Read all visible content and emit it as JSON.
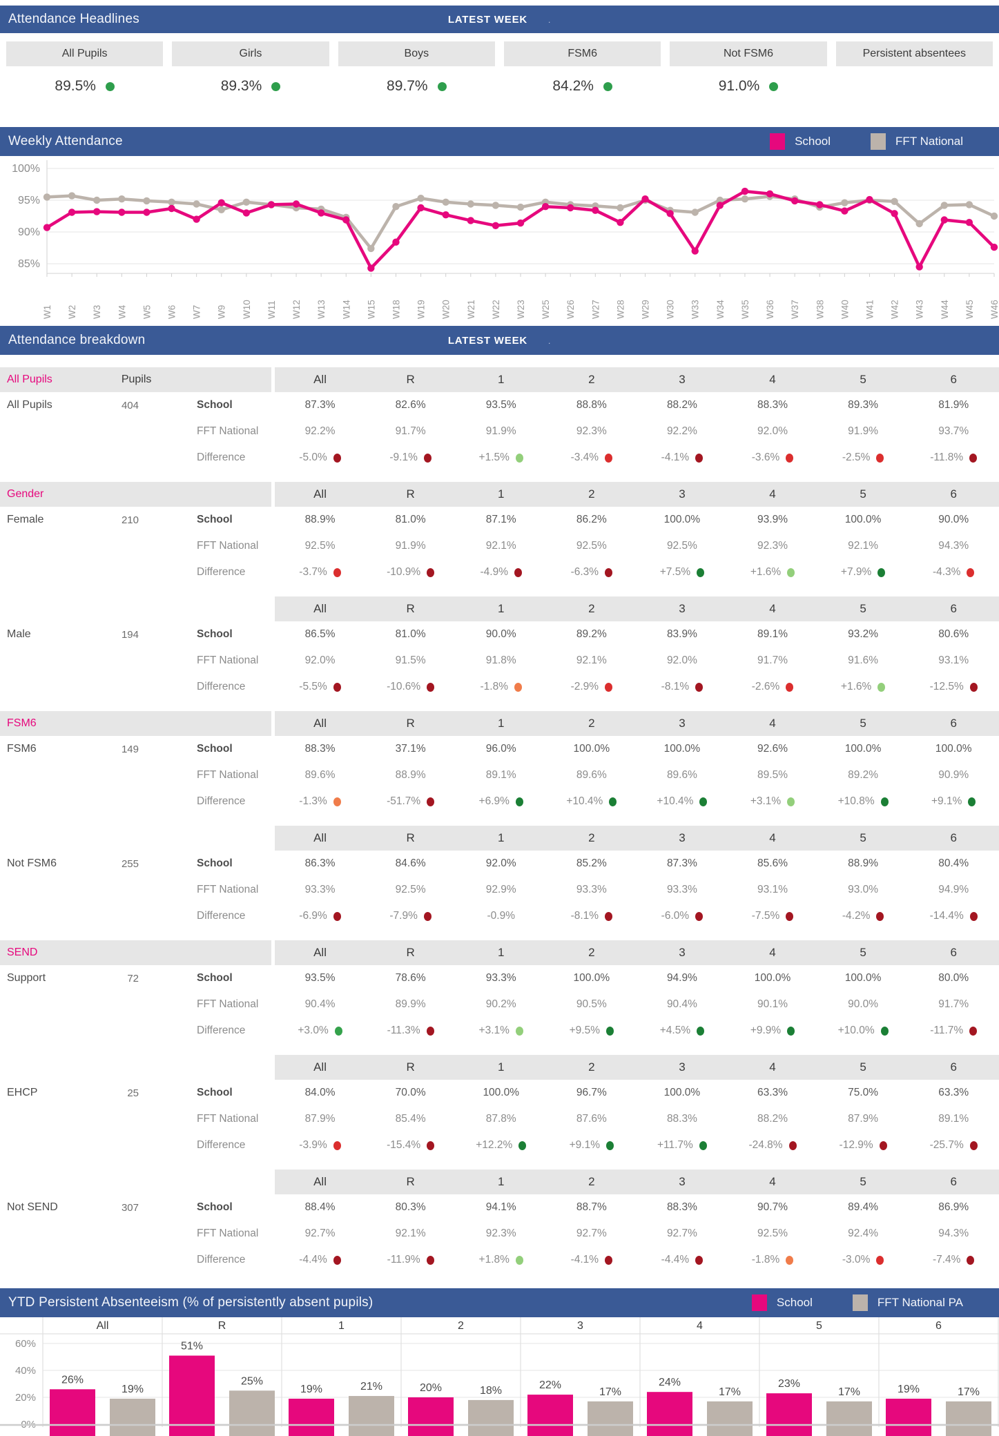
{
  "colors": {
    "header_blue": "#3A5A96",
    "school_pink": "#E6087D",
    "national_gray": "#BCB3AB",
    "band_gray": "#E6E6E6",
    "headline_dot_green": "#2E9E4C",
    "grid_line": "#E9E9E9",
    "dots": {
      "darkred": "#A31621",
      "red": "#DB2E2E",
      "orange": "#F07C4A",
      "lightgreen": "#93CF7B",
      "green": "#34A24B",
      "darkgreen": "#1B7F35"
    }
  },
  "headlines": {
    "title": "Attendance Headlines",
    "badge": "LATEST WEEK",
    "badge_suffix": ".",
    "cards": [
      {
        "label": "All Pupils",
        "value": "89.5%",
        "dot": true
      },
      {
        "label": "Girls",
        "value": "89.3%",
        "dot": true
      },
      {
        "label": "Boys",
        "value": "89.7%",
        "dot": true
      },
      {
        "label": "FSM6",
        "value": "84.2%",
        "dot": true
      },
      {
        "label": "Not FSM6",
        "value": "91.0%",
        "dot": true
      },
      {
        "label": "Persistent absentees",
        "value": "",
        "dot": false
      }
    ]
  },
  "weekly": {
    "title": "Weekly Attendance",
    "legend": [
      "School",
      "FFT National"
    ]
  },
  "breakdown": {
    "title": "Attendance breakdown",
    "badge": "LATEST WEEK",
    "badge_suffix": ".",
    "pupils_header": "Pupils",
    "columns": [
      "All",
      "R",
      "1",
      "2",
      "3",
      "4",
      "5",
      "6"
    ],
    "metric_labels": [
      "School",
      "FFT National",
      "Difference"
    ],
    "sections": [
      {
        "label": "All Pupils",
        "show_pupils_header": true,
        "subjects": [
          {
            "name": "All Pupils",
            "pupils": "404",
            "school": [
              "87.3%",
              "82.6%",
              "93.5%",
              "88.8%",
              "88.2%",
              "88.3%",
              "89.3%",
              "81.9%"
            ],
            "national": [
              "92.2%",
              "91.7%",
              "91.9%",
              "92.3%",
              "92.2%",
              "92.0%",
              "91.9%",
              "93.7%"
            ],
            "difference": [
              {
                "text": "-5.0%",
                "dot": "darkred"
              },
              {
                "text": "-9.1%",
                "dot": "darkred"
              },
              {
                "text": "+1.5%",
                "dot": "lightgreen"
              },
              {
                "text": "-3.4%",
                "dot": "red"
              },
              {
                "text": "-4.1%",
                "dot": "darkred"
              },
              {
                "text": "-3.6%",
                "dot": "red"
              },
              {
                "text": "-2.5%",
                "dot": "red"
              },
              {
                "text": "-11.8%",
                "dot": "darkred"
              }
            ]
          }
        ]
      },
      {
        "label": "Gender",
        "show_pupils_header": false,
        "subjects": [
          {
            "name": "Female",
            "pupils": "210",
            "school": [
              "88.9%",
              "81.0%",
              "87.1%",
              "86.2%",
              "100.0%",
              "93.9%",
              "100.0%",
              "90.0%"
            ],
            "national": [
              "92.5%",
              "91.9%",
              "92.1%",
              "92.5%",
              "92.5%",
              "92.3%",
              "92.1%",
              "94.3%"
            ],
            "difference": [
              {
                "text": "-3.7%",
                "dot": "red"
              },
              {
                "text": "-10.9%",
                "dot": "darkred"
              },
              {
                "text": "-4.9%",
                "dot": "darkred"
              },
              {
                "text": "-6.3%",
                "dot": "darkred"
              },
              {
                "text": "+7.5%",
                "dot": "darkgreen"
              },
              {
                "text": "+1.6%",
                "dot": "lightgreen"
              },
              {
                "text": "+7.9%",
                "dot": "darkgreen"
              },
              {
                "text": "-4.3%",
                "dot": "red"
              }
            ]
          },
          {
            "name": "Male",
            "pupils": "194",
            "school": [
              "86.5%",
              "81.0%",
              "90.0%",
              "89.2%",
              "83.9%",
              "89.1%",
              "93.2%",
              "80.6%"
            ],
            "national": [
              "92.0%",
              "91.5%",
              "91.8%",
              "92.1%",
              "92.0%",
              "91.7%",
              "91.6%",
              "93.1%"
            ],
            "difference": [
              {
                "text": "-5.5%",
                "dot": "darkred"
              },
              {
                "text": "-10.6%",
                "dot": "darkred"
              },
              {
                "text": "-1.8%",
                "dot": "orange"
              },
              {
                "text": "-2.9%",
                "dot": "red"
              },
              {
                "text": "-8.1%",
                "dot": "darkred"
              },
              {
                "text": "-2.6%",
                "dot": "red"
              },
              {
                "text": "+1.6%",
                "dot": "lightgreen"
              },
              {
                "text": "-12.5%",
                "dot": "darkred"
              }
            ]
          }
        ]
      },
      {
        "label": "FSM6",
        "show_pupils_header": false,
        "subjects": [
          {
            "name": "FSM6",
            "pupils": "149",
            "school": [
              "88.3%",
              "37.1%",
              "96.0%",
              "100.0%",
              "100.0%",
              "92.6%",
              "100.0%",
              "100.0%"
            ],
            "national": [
              "89.6%",
              "88.9%",
              "89.1%",
              "89.6%",
              "89.6%",
              "89.5%",
              "89.2%",
              "90.9%"
            ],
            "difference": [
              {
                "text": "-1.3%",
                "dot": "orange"
              },
              {
                "text": "-51.7%",
                "dot": "darkred"
              },
              {
                "text": "+6.9%",
                "dot": "darkgreen"
              },
              {
                "text": "+10.4%",
                "dot": "darkgreen"
              },
              {
                "text": "+10.4%",
                "dot": "darkgreen"
              },
              {
                "text": "+3.1%",
                "dot": "lightgreen"
              },
              {
                "text": "+10.8%",
                "dot": "darkgreen"
              },
              {
                "text": "+9.1%",
                "dot": "darkgreen"
              }
            ]
          },
          {
            "name": "Not FSM6",
            "pupils": "255",
            "school": [
              "86.3%",
              "84.6%",
              "92.0%",
              "85.2%",
              "87.3%",
              "85.6%",
              "88.9%",
              "80.4%"
            ],
            "national": [
              "93.3%",
              "92.5%",
              "92.9%",
              "93.3%",
              "93.3%",
              "93.1%",
              "93.0%",
              "94.9%"
            ],
            "difference": [
              {
                "text": "-6.9%",
                "dot": "darkred"
              },
              {
                "text": "-7.9%",
                "dot": "darkred"
              },
              {
                "text": "-0.9%",
                "dot": "none"
              },
              {
                "text": "-8.1%",
                "dot": "darkred"
              },
              {
                "text": "-6.0%",
                "dot": "darkred"
              },
              {
                "text": "-7.5%",
                "dot": "darkred"
              },
              {
                "text": "-4.2%",
                "dot": "darkred"
              },
              {
                "text": "-14.4%",
                "dot": "darkred"
              }
            ]
          }
        ]
      },
      {
        "label": "SEND",
        "show_pupils_header": false,
        "subjects": [
          {
            "name": "Support",
            "pupils": "72",
            "school": [
              "93.5%",
              "78.6%",
              "93.3%",
              "100.0%",
              "94.9%",
              "100.0%",
              "100.0%",
              "80.0%"
            ],
            "national": [
              "90.4%",
              "89.9%",
              "90.2%",
              "90.5%",
              "90.4%",
              "90.1%",
              "90.0%",
              "91.7%"
            ],
            "difference": [
              {
                "text": "+3.0%",
                "dot": "green"
              },
              {
                "text": "-11.3%",
                "dot": "darkred"
              },
              {
                "text": "+3.1%",
                "dot": "lightgreen"
              },
              {
                "text": "+9.5%",
                "dot": "darkgreen"
              },
              {
                "text": "+4.5%",
                "dot": "darkgreen"
              },
              {
                "text": "+9.9%",
                "dot": "darkgreen"
              },
              {
                "text": "+10.0%",
                "dot": "darkgreen"
              },
              {
                "text": "-11.7%",
                "dot": "darkred"
              }
            ]
          },
          {
            "name": "EHCP",
            "pupils": "25",
            "school": [
              "84.0%",
              "70.0%",
              "100.0%",
              "96.7%",
              "100.0%",
              "63.3%",
              "75.0%",
              "63.3%"
            ],
            "national": [
              "87.9%",
              "85.4%",
              "87.8%",
              "87.6%",
              "88.3%",
              "88.2%",
              "87.9%",
              "89.1%"
            ],
            "difference": [
              {
                "text": "-3.9%",
                "dot": "red"
              },
              {
                "text": "-15.4%",
                "dot": "darkred"
              },
              {
                "text": "+12.2%",
                "dot": "darkgreen"
              },
              {
                "text": "+9.1%",
                "dot": "darkgreen"
              },
              {
                "text": "+11.7%",
                "dot": "darkgreen"
              },
              {
                "text": "-24.8%",
                "dot": "darkred"
              },
              {
                "text": "-12.9%",
                "dot": "darkred"
              },
              {
                "text": "-25.7%",
                "dot": "darkred"
              }
            ]
          },
          {
            "name": "Not SEND",
            "pupils": "307",
            "school": [
              "88.4%",
              "80.3%",
              "94.1%",
              "88.7%",
              "88.3%",
              "90.7%",
              "89.4%",
              "86.9%"
            ],
            "national": [
              "92.7%",
              "92.1%",
              "92.3%",
              "92.7%",
              "92.7%",
              "92.5%",
              "92.4%",
              "94.3%"
            ],
            "difference": [
              {
                "text": "-4.4%",
                "dot": "darkred"
              },
              {
                "text": "-11.9%",
                "dot": "darkred"
              },
              {
                "text": "+1.8%",
                "dot": "lightgreen"
              },
              {
                "text": "-4.1%",
                "dot": "darkred"
              },
              {
                "text": "-4.4%",
                "dot": "darkred"
              },
              {
                "text": "-1.8%",
                "dot": "orange"
              },
              {
                "text": "-3.0%",
                "dot": "red"
              },
              {
                "text": "-7.4%",
                "dot": "darkred"
              }
            ]
          }
        ]
      }
    ]
  },
  "pa": {
    "title": "YTD Persistent Absenteeism (% of persistently absent pupils)",
    "legend": [
      "School",
      "FFT National PA"
    ]
  },
  "chart_data": [
    {
      "type": "line",
      "title": "Weekly Attendance",
      "x": [
        "W1",
        "W2",
        "W3",
        "W4",
        "W5",
        "W6",
        "W7",
        "W9",
        "W10",
        "W11",
        "W12",
        "W13",
        "W14",
        "W15",
        "W18",
        "W19",
        "W20",
        "W21",
        "W22",
        "W23",
        "W25",
        "W26",
        "W27",
        "W28",
        "W29",
        "W30",
        "W33",
        "W34",
        "W35",
        "W36",
        "W37",
        "W38",
        "W40",
        "W41",
        "W42",
        "W43",
        "W44",
        "W45",
        "W46"
      ],
      "series": [
        {
          "name": "School",
          "color": "#E6087D",
          "values": [
            90.7,
            93.1,
            93.2,
            93.1,
            93.1,
            93.7,
            92.0,
            94.6,
            93.0,
            94.3,
            94.4,
            93.0,
            91.9,
            84.3,
            88.4,
            93.8,
            92.7,
            91.8,
            91.0,
            91.4,
            94.0,
            93.8,
            93.4,
            91.5,
            95.2,
            92.9,
            87.0,
            94.2,
            96.4,
            96.0,
            94.9,
            94.3,
            93.3,
            95.1,
            92.9,
            84.5,
            91.9,
            91.5,
            87.6
          ]
        },
        {
          "name": "FFT National",
          "color": "#BCB3AB",
          "values": [
            95.5,
            95.7,
            95.0,
            95.2,
            94.9,
            94.7,
            94.4,
            93.5,
            94.7,
            94.3,
            93.8,
            93.6,
            92.3,
            87.4,
            94.0,
            95.3,
            94.7,
            94.4,
            94.2,
            93.9,
            94.7,
            94.3,
            94.1,
            93.8,
            95.0,
            93.4,
            93.1,
            95.0,
            95.2,
            95.6,
            95.2,
            93.9,
            94.6,
            95.0,
            94.8,
            91.3,
            94.2,
            94.3,
            92.5
          ]
        }
      ],
      "ylabel": "",
      "xlabel": "",
      "yticks": [
        85,
        90,
        95,
        100
      ],
      "ytick_labels": [
        "85%",
        "90%",
        "95%",
        "100%"
      ],
      "ylim": [
        83.5,
        100.9
      ],
      "grid": true,
      "legend_position": "header-right"
    },
    {
      "type": "bar",
      "title": "YTD Persistent Absenteeism (% of persistently absent pupils)",
      "categories": [
        "All",
        "R",
        "1",
        "2",
        "3",
        "4",
        "5",
        "6"
      ],
      "series": [
        {
          "name": "School",
          "color": "#E6087D",
          "values": [
            26,
            51,
            19,
            20,
            22,
            24,
            23,
            19
          ]
        },
        {
          "name": "FFT National PA",
          "color": "#BCB3AB",
          "values": [
            19,
            25,
            21,
            18,
            17,
            17,
            17,
            17
          ]
        }
      ],
      "yticks": [
        0,
        20,
        40,
        60
      ],
      "ytick_labels": [
        "0%",
        "20%",
        "40%",
        "60%"
      ],
      "ylim": [
        0,
        65
      ],
      "value_labels": true,
      "value_suffix": "%",
      "grid": true,
      "legend_position": "header-right"
    }
  ]
}
